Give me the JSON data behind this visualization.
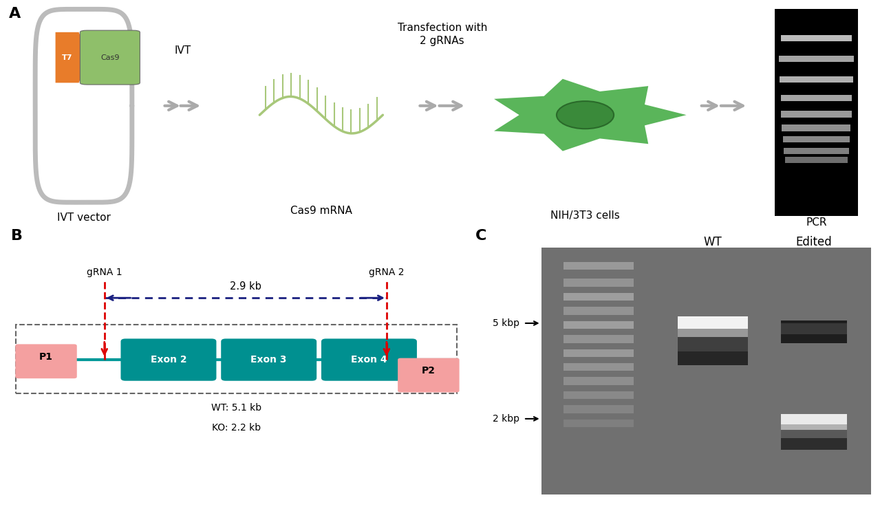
{
  "panel_A_label": "A",
  "panel_B_label": "B",
  "panel_C_label": "C",
  "ivt_vector_label": "IVT vector",
  "ivt_label": "IVT",
  "cas9_mrna_label": "Cas9 mRNA",
  "transfection_label": "Transfection with\n2 gRNAs",
  "nih3t3_label": "NIH/3T3 cells",
  "pcr_label": "PCR",
  "t7_color": "#E87C2A",
  "cas9_color": "#8FBF6A",
  "plasmid_color": "#BBBBBB",
  "mrna_color": "#A8C87A",
  "cell_color": "#5AB55A",
  "cell_dark": "#3A8A3A",
  "grna1_label": "gRNA 1",
  "grna2_label": "gRNA 2",
  "distance_label": "2.9 kb",
  "exon_color": "#009090",
  "exon2_label": "Exon 2",
  "exon3_label": "Exon 3",
  "exon4_label": "Exon 4",
  "p1_label": "P1",
  "p2_label": "P2",
  "primer_box_color": "#F4A0A0",
  "line_color": "#009898",
  "wt_label": "WT: 5.1 kb",
  "ko_label": "KO: 2.2 kb",
  "wt_col_label": "WT",
  "edited_col_label": "Edited",
  "kbp5_label": "5 kbp",
  "kbp2_label": "2 kbp",
  "bg_color": "#FFFFFF",
  "dashed_box_color": "#666666",
  "grna_line_color": "#DD0000",
  "double_arrow_color": "#1A2080",
  "arrow_gray": "#AAAAAA",
  "font_size_label": 16,
  "font_size_text": 11,
  "font_size_small": 9
}
